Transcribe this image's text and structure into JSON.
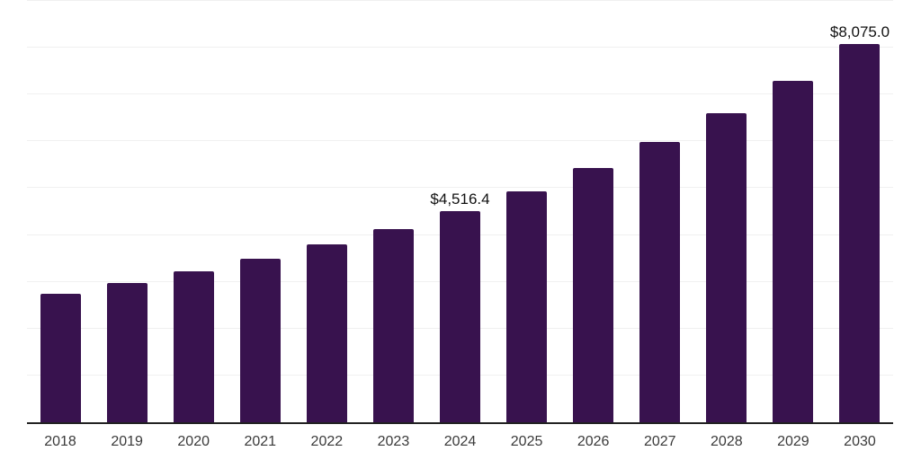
{
  "chart_data": {
    "type": "bar",
    "title": "",
    "xlabel": "",
    "ylabel": "",
    "categories": [
      "2018",
      "2019",
      "2020",
      "2021",
      "2022",
      "2023",
      "2024",
      "2025",
      "2026",
      "2027",
      "2028",
      "2029",
      "2030"
    ],
    "values": [
      2744,
      2974,
      3224,
      3493,
      3800,
      4126,
      4516.4,
      4938,
      5437,
      5993,
      6596,
      7298,
      8075.0
    ],
    "value_labels": {
      "6": "$4,516.4",
      "12": "$8,075.0"
    },
    "ylim": [
      0,
      9000
    ],
    "gridline_step": 1000,
    "grid": "horizontal-only",
    "legend": "none",
    "bar_color": "#38124E",
    "gridline_color": "#f0f0f0",
    "axis_line_color": "#222222",
    "tick_label_color": "#3a3a3a",
    "data_label_color": "#111111"
  }
}
